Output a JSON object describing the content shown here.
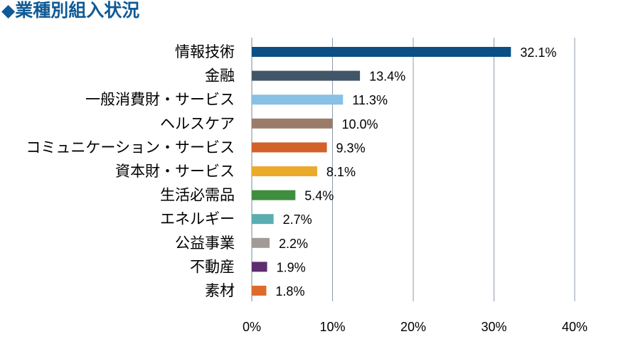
{
  "chart_data": {
    "type": "bar",
    "orientation": "horizontal",
    "title": "◆業種別組入状況",
    "categories": [
      "情報技術",
      "金融",
      "一般消費財・サービス",
      "ヘルスケア",
      "コミュニケーション・サービス",
      "資本財・サービス",
      "生活必需品",
      "エネルギー",
      "公益事業",
      "不動産",
      "素材"
    ],
    "values": [
      32.1,
      13.4,
      11.3,
      10.0,
      9.3,
      8.1,
      5.4,
      2.7,
      2.2,
      1.9,
      1.8
    ],
    "value_labels": [
      "32.1%",
      "13.4%",
      "11.3%",
      "10.0%",
      "9.3%",
      "8.1%",
      "5.4%",
      "2.7%",
      "2.2%",
      "1.9%",
      "1.8%"
    ],
    "colors": [
      "#0b4f85",
      "#425568",
      "#88c0e6",
      "#9b7b6a",
      "#d2622a",
      "#ecaa2b",
      "#3f8d3e",
      "#5aaeb0",
      "#a29a97",
      "#5d2d6d",
      "#df6b2b"
    ],
    "xlim": [
      0,
      40
    ],
    "xticks": [
      0,
      10,
      20,
      30,
      40
    ],
    "xtick_labels": [
      "0%",
      "10%",
      "20%",
      "30%",
      "40%"
    ],
    "xlabel": "",
    "ylabel": "",
    "grid": true
  }
}
